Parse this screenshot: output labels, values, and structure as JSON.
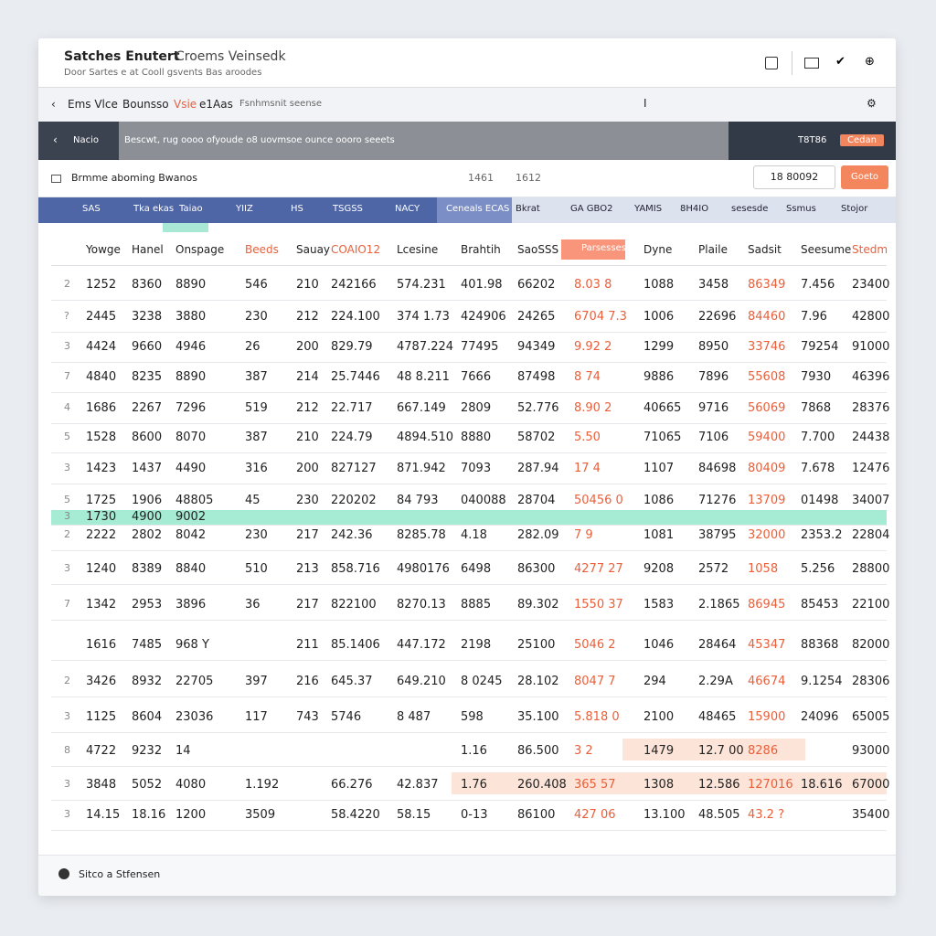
{
  "header": {
    "title": "Satches Enutert",
    "title_secondary": "Croems Veinsedk",
    "subtitle": "Door Sartes e at  Cooll gsvents Bas aroodes"
  },
  "toolbar": {
    "back": "Ems Vlce",
    "source": "Bounsso",
    "view": "Vsie",
    "tag": "e1Aas",
    "filter": "Fsnhmsnit seense",
    "cursor": "I"
  },
  "navbar": {
    "label": "Nacio",
    "path": "Bescwt, rug oooo ofyoude o8 uovmsoe ounce oooro seeets",
    "count": "T8T86",
    "button": "Cedan"
  },
  "search": {
    "placeholder": "Brmme aboming Bwanos",
    "from": "1461",
    "to": "1612",
    "range": "18 80092",
    "button": "Goeto"
  },
  "table": {
    "groups": [
      "SAS",
      "Tka ekas",
      "Taiao",
      "YIIZ",
      "HS",
      "TSGSS",
      "NACY",
      "Ceneals ECAS",
      "Bkrat",
      "GA GBO2",
      "YAMIS",
      "8H4IO",
      "sesesde",
      "Ssmus",
      "Stojor"
    ],
    "columns": [
      "",
      "Yowge",
      "Hanel",
      "Onspage",
      "Beeds",
      "Sauay",
      "COAIO12",
      "Lcesine",
      "Brahtih",
      "SaoSSS",
      "Parsesses",
      "Dyne",
      "Plaile",
      "Sadsit",
      "Seesume",
      "Stedm"
    ],
    "rows": [
      {
        "cells": [
          "2",
          "1252",
          "8360",
          "8890",
          "546",
          "210",
          "242166",
          "574.231",
          "401.98",
          "66202",
          "8.03  8",
          "1088",
          "3458",
          "86349",
          "7.456",
          "23400"
        ]
      },
      {
        "cells": [
          "?",
          "2445",
          "3238",
          "3880",
          "230",
          "212",
          "224.100",
          "374 1.73",
          "424906",
          "24265",
          "6704 7.3",
          "1006",
          "22696",
          "84460",
          "7.96",
          "42800"
        ]
      },
      {
        "cells": [
          "3",
          "4424",
          "9660",
          "4946",
          "26",
          "200",
          "829.79",
          "4787.224",
          "77495",
          "94349",
          "9.92 2",
          "1299",
          "8950",
          "33746",
          "79254",
          "91000"
        ]
      },
      {
        "cells": [
          "7",
          "4840",
          "8235",
          "8890",
          "387",
          "214",
          "25.7446",
          "48 8.211",
          "7666",
          "87498",
          "8 74",
          "9886",
          "7896",
          "55608",
          "7930",
          "46396"
        ]
      },
      {
        "cells": [
          "4",
          "1686",
          "2267",
          "7296",
          "519",
          "212",
          "22.717",
          "667.149",
          "2809",
          "52.776",
          "8.90 2",
          "40665",
          "9716",
          "56069",
          "7868",
          "28376"
        ]
      },
      {
        "cells": [
          "5",
          "1528",
          "8600",
          "8070",
          "387",
          "210",
          "224.79",
          "4894.510",
          "8880",
          "58702",
          "5.50",
          "71065",
          "7106",
          "59400",
          "7.700",
          "24438"
        ]
      },
      {
        "cells": [
          "3",
          "1423",
          "1437",
          "4490",
          "316",
          "200",
          "827127",
          "871.942",
          "7093",
          "287.94",
          "17 4",
          "1107",
          "84698",
          "80409",
          "7.678",
          "12476"
        ]
      },
      {
        "cells": [
          "5",
          "1725",
          "1906",
          "48805",
          "45",
          "230",
          "220202",
          "84 793",
          "040088",
          "28704",
          "50456 0",
          "1086",
          "71276",
          "13709",
          "01498",
          "34007"
        ]
      },
      {
        "cells": [
          "3",
          "1730",
          "4900",
          "9002",
          "",
          "",
          "",
          "",
          "",
          "",
          "",
          "",
          "",
          "",
          "",
          ""
        ],
        "highlight": "green"
      },
      {
        "cells": [
          "2",
          "2222",
          "2802",
          "8042",
          "230",
          "217",
          "242.36",
          "8285.78",
          "4.18",
          "282.09",
          "7 9",
          "1081",
          "38795",
          "32000",
          "2353.2",
          "22804"
        ]
      },
      {
        "cells": [
          "3",
          "1240",
          "8389",
          "8840",
          "510",
          "213",
          "858.716",
          "4980176",
          "6498",
          "86300",
          "4277 27",
          "9208",
          "2572",
          "1058",
          "5.256",
          "28800"
        ]
      },
      {
        "cells": [
          "7",
          "1342",
          "2953",
          "3896",
          "36",
          "217",
          "822100",
          "8270.13",
          "8885",
          "89.302",
          "1550 37",
          "1583",
          "2.1865",
          "86945",
          "85453",
          "22100"
        ]
      },
      {
        "cells": [
          "",
          "1616",
          "7485",
          "968 Y",
          "",
          "211",
          "85.1406",
          "447.172",
          "2198",
          "25100",
          "5046 2",
          "1046",
          "28464",
          "45347",
          "88368",
          "82000"
        ]
      },
      {
        "cells": [
          "2",
          "3426",
          "8932",
          "22705",
          "397",
          "216",
          "645.37",
          "649.210",
          "8 0245",
          "28.102",
          "8047 7",
          "294",
          "2.29A",
          "46674",
          "9.1254",
          "28306"
        ]
      },
      {
        "cells": [
          "3",
          "1125",
          "8604",
          "23036",
          "117",
          "743",
          "5746",
          "8 487",
          "598",
          "35.100",
          "5.818 0",
          "2100",
          "48465",
          "15900",
          "24096",
          "65005"
        ]
      },
      {
        "cells": [
          "8",
          "4722",
          "9232",
          "14",
          "",
          "",
          "",
          "",
          "1.16",
          "86.500",
          "3 2",
          "1479",
          "12.7 00",
          "8286",
          "",
          "93000"
        ],
        "highlight": "orange"
      },
      {
        "cells": [
          "3",
          "3848",
          "5052",
          "4080",
          "1.192",
          "",
          "66.276",
          "42.837",
          "1.76",
          "260.408",
          "365 57",
          "1308",
          "12.586",
          "127016",
          "18.616",
          "67000"
        ],
        "highlight": "orange"
      },
      {
        "cells": [
          "3",
          "14.15",
          "18.16",
          "1200",
          "3509",
          "",
          "58.4220",
          "58.15",
          "0-13",
          "86100",
          "427 06",
          "13.100",
          "48.505",
          "43.2 ?",
          "",
          "35400"
        ]
      }
    ]
  },
  "footer": {
    "label": "Sitco a Stfensen"
  }
}
